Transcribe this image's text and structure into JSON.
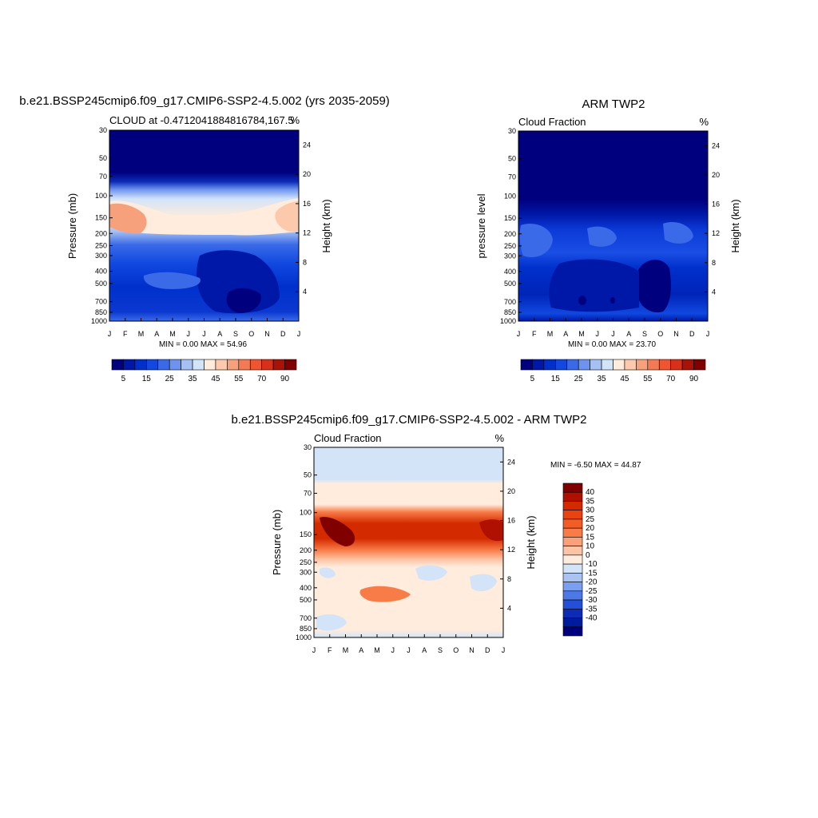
{
  "chart_data": [
    {
      "type": "heatmap",
      "title": "b.e21.BSSP245cmip6.f09_g17.CMIP6-SSP2-4.5.002 (yrs 2035-2059)",
      "subtitle_left": "CLOUD at -0.4712041884816784,167.5",
      "subtitle_right": "%",
      "ylabel": "Pressure (mb)",
      "ylabel_right": "Height (km)",
      "x_ticks": [
        "J",
        "F",
        "M",
        "A",
        "M",
        "J",
        "J",
        "A",
        "S",
        "O",
        "N",
        "D",
        "J"
      ],
      "y_ticks": [
        "30",
        "50",
        "70",
        "100",
        "150",
        "200",
        "250",
        "300",
        "400",
        "500",
        "700",
        "850",
        "1000"
      ],
      "y_ticks_right": [
        "24",
        "20",
        "16",
        "12",
        "8",
        "4"
      ],
      "min_max_text": "MIN =   0.00 MAX =  54.96",
      "colorbar": {
        "orientation": "horizontal",
        "labels": [
          "5",
          "15",
          "25",
          "35",
          "45",
          "55",
          "70",
          "90"
        ],
        "colors": [
          "#00007f",
          "#0018a8",
          "#0030cc",
          "#1048e0",
          "#3a6ae8",
          "#6d93ee",
          "#a5c0f3",
          "#d3e4f9",
          "#ffecdc",
          "#fcc9ac",
          "#f7a07c",
          "#f47a54",
          "#ef5530",
          "#d8301a",
          "#a81308",
          "#800000"
        ]
      }
    },
    {
      "type": "heatmap",
      "title": "ARM TWP2",
      "subtitle_left": "Cloud Fraction",
      "subtitle_right": "%",
      "ylabel": "pressure level",
      "ylabel_right": "Height (km)",
      "x_ticks": [
        "J",
        "F",
        "M",
        "A",
        "M",
        "J",
        "J",
        "A",
        "S",
        "O",
        "N",
        "D",
        "J"
      ],
      "y_ticks": [
        "30",
        "50",
        "70",
        "100",
        "150",
        "200",
        "250",
        "300",
        "400",
        "500",
        "700",
        "850",
        "1000"
      ],
      "y_ticks_right": [
        "24",
        "20",
        "16",
        "12",
        "8",
        "4"
      ],
      "min_max_text": "MIN =   0.00 MAX =  23.70",
      "colorbar": {
        "orientation": "horizontal",
        "labels": [
          "5",
          "15",
          "25",
          "35",
          "45",
          "55",
          "70",
          "90"
        ],
        "colors": [
          "#00007f",
          "#0018a8",
          "#0030cc",
          "#1048e0",
          "#3a6ae8",
          "#6d93ee",
          "#a5c0f3",
          "#d3e4f9",
          "#ffecdc",
          "#fcc9ac",
          "#f7a07c",
          "#f47a54",
          "#ef5530",
          "#d8301a",
          "#a81308",
          "#800000"
        ]
      }
    },
    {
      "type": "heatmap",
      "title": "b.e21.BSSP245cmip6.f09_g17.CMIP6-SSP2-4.5.002 - ARM TWP2",
      "subtitle_left": "Cloud Fraction",
      "subtitle_right": "%",
      "ylabel": "Pressure (mb)",
      "ylabel_right": "Height (km)",
      "x_ticks": [
        "J",
        "F",
        "M",
        "A",
        "M",
        "J",
        "J",
        "A",
        "S",
        "O",
        "N",
        "D",
        "J"
      ],
      "y_ticks": [
        "30",
        "50",
        "70",
        "100",
        "150",
        "200",
        "250",
        "300",
        "400",
        "500",
        "700",
        "850",
        "1000"
      ],
      "y_ticks_right": [
        "24",
        "20",
        "16",
        "12",
        "8",
        "4"
      ],
      "min_max_text": "MIN =  -6.50 MAX =  44.87",
      "colorbar": {
        "orientation": "vertical",
        "labels": [
          "40",
          "35",
          "30",
          "25",
          "20",
          "15",
          "10",
          "0",
          "-10",
          "-15",
          "-20",
          "-25",
          "-30",
          "-35",
          "-40"
        ],
        "colors": [
          "#800000",
          "#b01000",
          "#d42a00",
          "#ea4312",
          "#f45c26",
          "#f87c48",
          "#faa07a",
          "#fcc4a6",
          "#ffecdc",
          "#d3e4f9",
          "#a9c4f3",
          "#7a9ff0",
          "#4c78e8",
          "#2450d8",
          "#0c2cb8",
          "#001c9c",
          "#00007f"
        ]
      }
    }
  ]
}
